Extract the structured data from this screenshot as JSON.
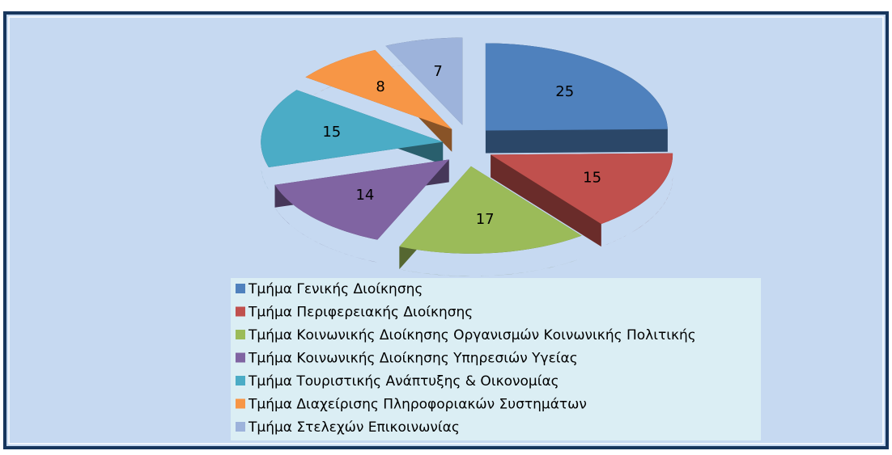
{
  "chart_data": {
    "type": "pie",
    "categories": [
      "Τμήμα Γενικής Διοίκησης",
      "Τμήμα Περιφερειακής Διοίκησης",
      "Τμήμα Κοινωνικής Διοίκησης Οργανισμών Κοινωνικής Πολιτικής",
      "Τμήμα Κοινωνικής Διοίκησης Υπηρεσιών Υγείας",
      "Τμήμα Τουριστικής Ανάπτυξης & Οικονομίας",
      "Τμήμα Διαχείρισης Πληροφοριακών Συστημάτων",
      "Τμήμα Στελεχών Επικοινωνίας"
    ],
    "values": [
      25,
      15,
      17,
      14,
      15,
      8,
      7
    ],
    "colors": [
      "#4f81bd",
      "#c0504d",
      "#9bbb59",
      "#8064a2",
      "#4bacc6",
      "#f79646",
      "#9db3db"
    ],
    "legend": "bottom"
  }
}
